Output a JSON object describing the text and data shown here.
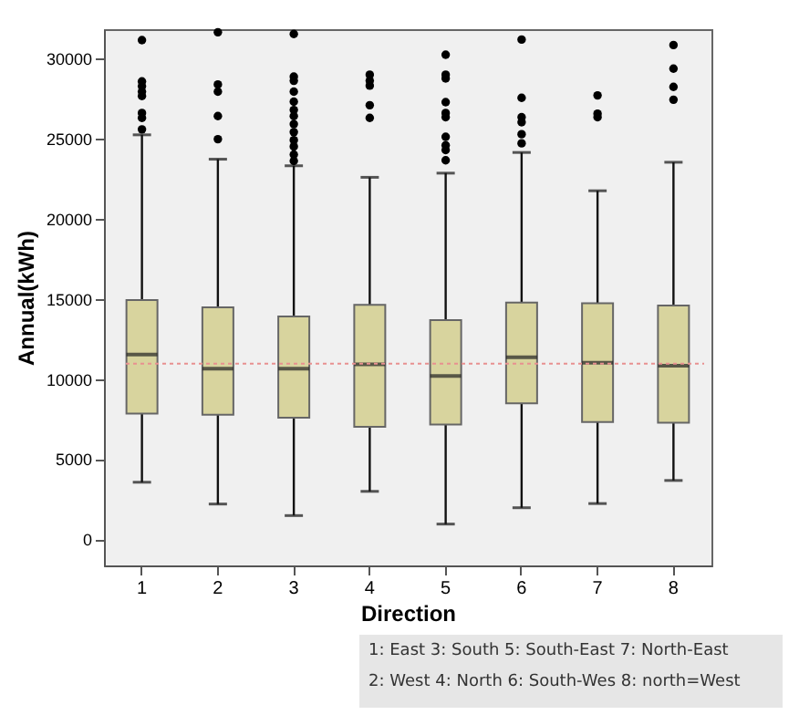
{
  "chart_data": {
    "type": "box",
    "xlabel": "Direction",
    "ylabel": "Annual(kWh)",
    "categories": [
      "1",
      "2",
      "3",
      "4",
      "5",
      "6",
      "7",
      "8"
    ],
    "series": [
      {
        "color": "#d8d49e",
        "boxes": [
          {
            "low": 3560,
            "q1": 7840,
            "median": 11520,
            "q3": 14920,
            "high": 25230,
            "outliers": [
              31140,
              28560,
              28260,
              27920,
              27650,
              26590,
              26290,
              25570
            ]
          },
          {
            "low": 2200,
            "q1": 7770,
            "median": 10640,
            "q3": 14470,
            "high": 23710,
            "outliers": [
              31630,
              28370,
              27920,
              26400,
              24960
            ]
          },
          {
            "low": 1480,
            "q1": 7580,
            "median": 10640,
            "q3": 13900,
            "high": 23300,
            "outliers": [
              31520,
              28860,
              28600,
              27920,
              27300,
              26780,
              26400,
              25900,
              25400,
              24900,
              24500,
              24000,
              23600
            ]
          },
          {
            "low": 2990,
            "q1": 7010,
            "median": 10910,
            "q3": 14620,
            "high": 22580,
            "outliers": [
              28980,
              28600,
              28300,
              27080,
              26290
            ]
          },
          {
            "low": 950,
            "q1": 7160,
            "median": 10190,
            "q3": 13670,
            "high": 22840,
            "outliers": [
              30230,
              28980,
              28750,
              27270,
              26590,
              26330,
              25110,
              24580,
              24280,
              23640
            ]
          },
          {
            "low": 1970,
            "q1": 8480,
            "median": 11360,
            "q3": 14770,
            "high": 24130,
            "outliers": [
              31170,
              27540,
              26330,
              26020,
              25270,
              24700
            ]
          },
          {
            "low": 2230,
            "q1": 7310,
            "median": 11020,
            "q3": 14730,
            "high": 21740,
            "outliers": [
              27690,
              26550,
              26330
            ]
          },
          {
            "low": 3670,
            "q1": 7270,
            "median": 10830,
            "q3": 14580,
            "high": 23520,
            "outliers": [
              30830,
              29360,
              28220,
              27420
            ]
          }
        ]
      }
    ],
    "ylim": [
      -1630,
      31820
    ],
    "yticks": [
      0,
      5000,
      10000,
      15000,
      20000,
      25000,
      30000
    ],
    "ref_lines": [
      {
        "axis": "y",
        "value": 10950,
        "color": "#e89090",
        "line_style": "dotted"
      }
    ],
    "annotations": [
      "1: East   3: South   5: South-East   7: North-East",
      "2: West   4: North   6: South-Wes   8: north=West"
    ]
  }
}
